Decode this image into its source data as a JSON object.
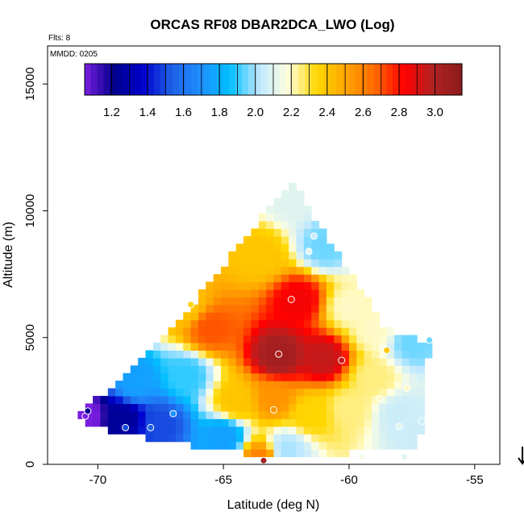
{
  "chart_data": {
    "type": "heatmap",
    "title": "ORCAS RF08 DBAR2DCA_LWO (Log)",
    "flights_note": "Flts: 8",
    "date_note": "MMDD: 0205",
    "xlabel": "Latitude (deg N)",
    "ylabel": "Altitude (m)",
    "xlim": [
      -72,
      -54
    ],
    "ylim": [
      0,
      16500
    ],
    "x_ticks": [
      -70,
      -65,
      -60,
      -55
    ],
    "x_tick_labels": [
      "-70",
      "-65",
      "-60",
      "-55"
    ],
    "y_ticks": [
      0,
      5000,
      10000,
      15000
    ],
    "y_tick_labels": [
      "0",
      "5000",
      "10000",
      "15000"
    ],
    "grid": false,
    "colorbar": {
      "placement": "top",
      "range": [
        1.05,
        3.15
      ],
      "ticks": [
        1.2,
        1.4,
        1.6,
        1.8,
        2.0,
        2.2,
        2.4,
        2.6,
        2.8,
        3.0
      ],
      "tick_labels": [
        "1.2",
        "1.4",
        "1.6",
        "1.8",
        "2.0",
        "2.2",
        "2.4",
        "2.6",
        "2.8",
        "3.0"
      ],
      "colors": [
        "#7a1ee0",
        "#00008b",
        "#0000cd",
        "#1e5fe6",
        "#1e90ff",
        "#00bfff",
        "#bfe8ff",
        "#ffffe0",
        "#ffd700",
        "#ffa500",
        "#ff6a00",
        "#ff0000",
        "#b22222",
        "#8b1a1a"
      ]
    },
    "region_outline": [
      [
        -71.0,
        1800
      ],
      [
        -68.5,
        3800
      ],
      [
        -66.0,
        6600
      ],
      [
        -62.3,
        11200
      ],
      [
        -60.0,
        7600
      ],
      [
        -58.5,
        5300
      ],
      [
        -56.8,
        4800
      ],
      [
        -57.2,
        600
      ],
      [
        -63.0,
        300
      ],
      [
        -66.0,
        700
      ],
      [
        -69.5,
        1300
      ]
    ],
    "field_anchors": [
      {
        "x": -70.5,
        "y": 1900,
        "v": 1.05
      },
      {
        "x": -69.0,
        "y": 1800,
        "v": 1.25
      },
      {
        "x": -67.5,
        "y": 1600,
        "v": 1.5
      },
      {
        "x": -68.5,
        "y": 3200,
        "v": 1.75
      },
      {
        "x": -66.5,
        "y": 3500,
        "v": 1.9
      },
      {
        "x": -65.0,
        "y": 1100,
        "v": 1.75
      },
      {
        "x": -62.5,
        "y": 600,
        "v": 2.0
      },
      {
        "x": -63.5,
        "y": 200,
        "v": 2.6
      },
      {
        "x": -66.5,
        "y": 6200,
        "v": 2.4
      },
      {
        "x": -65.5,
        "y": 5400,
        "v": 2.7
      },
      {
        "x": -62.8,
        "y": 4300,
        "v": 3.05
      },
      {
        "x": -61.0,
        "y": 4200,
        "v": 2.95
      },
      {
        "x": -62.0,
        "y": 6500,
        "v": 2.85
      },
      {
        "x": -63.5,
        "y": 8200,
        "v": 2.4
      },
      {
        "x": -62.3,
        "y": 10500,
        "v": 2.1
      },
      {
        "x": -61.0,
        "y": 8600,
        "v": 1.95
      },
      {
        "x": -63.0,
        "y": 2600,
        "v": 2.55
      },
      {
        "x": -61.5,
        "y": 2000,
        "v": 2.35
      },
      {
        "x": -60.0,
        "y": 2200,
        "v": 2.25
      },
      {
        "x": -58.0,
        "y": 2000,
        "v": 2.05
      },
      {
        "x": -59.0,
        "y": 5300,
        "v": 2.2
      },
      {
        "x": -57.5,
        "y": 4800,
        "v": 1.95
      },
      {
        "x": -59.0,
        "y": 3400,
        "v": 2.25
      },
      {
        "x": -64.5,
        "y": 2500,
        "v": 2.4
      },
      {
        "x": -60.0,
        "y": 6200,
        "v": 2.2
      },
      {
        "x": -57.2,
        "y": 1000,
        "v": 2.05
      }
    ],
    "observations": [
      {
        "lat": -70.5,
        "alt": 1900,
        "v": 1.05
      },
      {
        "lat": -70.4,
        "alt": 2100,
        "v": 1.2
      },
      {
        "lat": -68.9,
        "alt": 1450,
        "v": 1.5
      },
      {
        "lat": -67.9,
        "alt": 1450,
        "v": 1.55
      },
      {
        "lat": -67.0,
        "alt": 2000,
        "v": 1.7
      },
      {
        "lat": -66.3,
        "alt": 6300,
        "v": 2.35
      },
      {
        "lat": -62.3,
        "alt": 6500,
        "v": 2.8
      },
      {
        "lat": -62.8,
        "alt": 4350,
        "v": 3.0
      },
      {
        "lat": -60.3,
        "alt": 4100,
        "v": 2.95
      },
      {
        "lat": -63.0,
        "alt": 2150,
        "v": 2.55
      },
      {
        "lat": -61.4,
        "alt": 9000,
        "v": 2.05
      },
      {
        "lat": -61.6,
        "alt": 8400,
        "v": 2.1
      },
      {
        "lat": -58.5,
        "alt": 4500,
        "v": 2.4
      },
      {
        "lat": -56.8,
        "alt": 4900,
        "v": 1.95
      },
      {
        "lat": -57.7,
        "alt": 3000,
        "v": 2.2
      },
      {
        "lat": -58.8,
        "alt": 2600,
        "v": 2.2
      },
      {
        "lat": -57.1,
        "alt": 1700,
        "v": 2.05
      },
      {
        "lat": -58.0,
        "alt": 1500,
        "v": 2.1
      },
      {
        "lat": -57.8,
        "alt": 300,
        "v": 2.1
      },
      {
        "lat": -59.5,
        "alt": 300,
        "v": 2.15
      },
      {
        "lat": -63.4,
        "alt": 150,
        "v": 3.05
      }
    ],
    "direction_arrow": "down",
    "arrow_position": {
      "lat": -53.1,
      "alt_top": 700,
      "alt_bottom": 0
    }
  }
}
